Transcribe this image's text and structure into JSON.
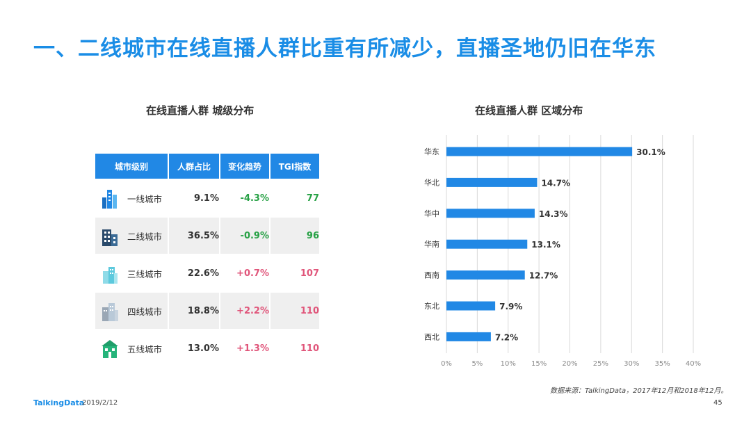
{
  "title": "一、二线城市在线直播人群比重有所减少，直播圣地仍旧在华东",
  "left_title": "在线直播人群  城级分布",
  "right_title": "在线直播人群  区域分布",
  "table": {
    "headers": [
      "城市级别",
      "人群占比",
      "变化趋势",
      "TGI指数"
    ],
    "rows": [
      {
        "level": "一线城市",
        "icon": "tall-buildings-icon",
        "share": "9.1%",
        "trend": "-4.3%",
        "tgi": "77",
        "dir": "neg"
      },
      {
        "level": "二线城市",
        "icon": "office-building-icon",
        "share": "36.5%",
        "trend": "-0.9%",
        "tgi": "96",
        "dir": "neg"
      },
      {
        "level": "三线城市",
        "icon": "light-buildings-icon",
        "share": "22.6%",
        "trend": "+0.7%",
        "tgi": "107",
        "dir": "pos"
      },
      {
        "level": "四线城市",
        "icon": "gray-buildings-icon",
        "share": "18.8%",
        "trend": "+2.2%",
        "tgi": "110",
        "dir": "pos"
      },
      {
        "level": "五线城市",
        "icon": "green-house-icon",
        "share": "13.0%",
        "trend": "+1.3%",
        "tgi": "110",
        "dir": "pos"
      }
    ]
  },
  "chart_data": {
    "type": "bar",
    "orientation": "horizontal",
    "categories": [
      "华东",
      "华北",
      "华中",
      "华南",
      "西南",
      "东北",
      "西北"
    ],
    "values": [
      30.1,
      14.7,
      14.3,
      13.1,
      12.7,
      7.9,
      7.2
    ],
    "value_labels": [
      "30.1%",
      "14.7%",
      "14.3%",
      "13.1%",
      "12.7%",
      "7.9%",
      "7.2%"
    ],
    "xlim": [
      0,
      40
    ],
    "xticks": [
      "0%",
      "5%",
      "10%",
      "15%",
      "20%",
      "25%",
      "30%",
      "35%",
      "40%"
    ],
    "grid": true,
    "bar_color": "#2188e5"
  },
  "source": "数据来源：TalkingData，2017年12月和2018年12月。",
  "footer": {
    "brand": "TalkingData",
    "date": "2019/2/12",
    "page": "45"
  },
  "colors": {
    "accent": "#1a8de6",
    "header": "#2188e5",
    "negative": "#27a145",
    "positive": "#e0557a"
  }
}
